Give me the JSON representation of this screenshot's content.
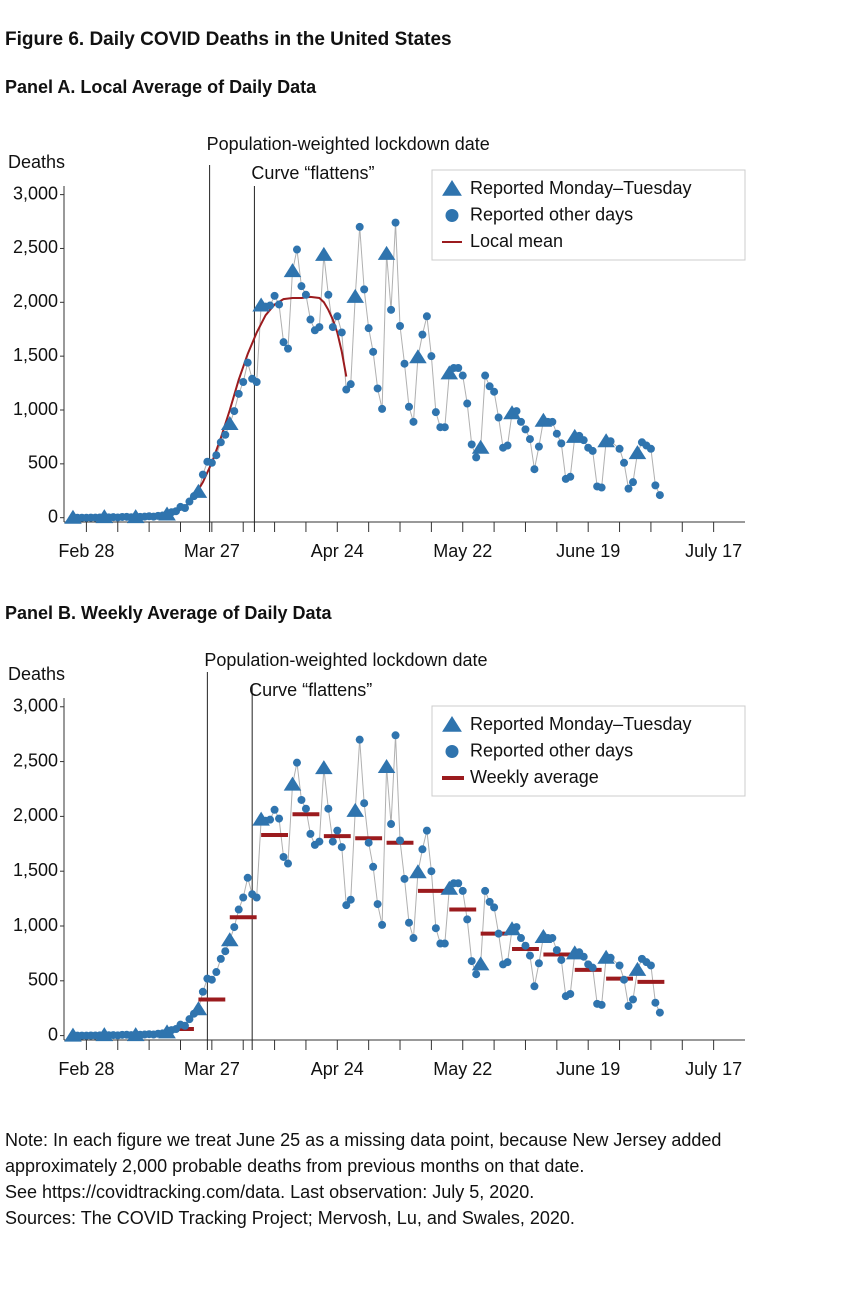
{
  "title": "Figure 6. Daily COVID Deaths in the United States",
  "notes": [
    "Note: In each figure we treat June 25 as a missing data point, because New Jersey added",
    "approximately 2,000 probable deaths from previous months on that date.",
    "See https://covidtracking.com/data. Last observation: July 5, 2020.",
    "Sources:  The COVID Tracking Project; Mervosh, Lu, and Swales, 2020."
  ],
  "chart_data": [
    {
      "type": "scatter",
      "title": "Panel A. Local Average of Daily Data",
      "y_label": "Deaths",
      "xlim": [
        -5,
        147
      ],
      "ylim": [
        -40,
        3080
      ],
      "xticks": [
        {
          "value": 0,
          "label": "Feb 28"
        },
        {
          "value": 28,
          "label": "Mar 27"
        },
        {
          "value": 56,
          "label": "Apr 24"
        },
        {
          "value": 84,
          "label": "May 22"
        },
        {
          "value": 112,
          "label": "June 19"
        },
        {
          "value": 140,
          "label": "July 17"
        }
      ],
      "xminorticks": [
        7,
        14,
        21,
        35,
        42,
        49,
        63,
        70,
        77,
        91,
        98,
        105,
        119,
        126,
        133
      ],
      "yticks": [
        0,
        500,
        {
          "value": 1000,
          "label": "1,000"
        },
        {
          "value": 1500,
          "label": "1,500"
        },
        {
          "value": 2000,
          "label": "2,000"
        },
        {
          "value": 2500,
          "label": "2,500"
        },
        {
          "value": 3000,
          "label": "3,000"
        }
      ],
      "grid": false,
      "connector_color": "#b0b0b0",
      "annotations": [
        {
          "text": "Population-weighted lockdown date",
          "x": 27.5
        },
        {
          "text": "Curve “flattens”",
          "x": 37.5
        }
      ],
      "series": [
        {
          "name": "Reported Monday–Tuesday",
          "marker": "triangle",
          "color": "#2f74ae",
          "x": [
            -3,
            4,
            11,
            18,
            25,
            32,
            39,
            46,
            53,
            60,
            67,
            74,
            81,
            88,
            95,
            102,
            109,
            116,
            123
          ],
          "values": [
            0,
            5,
            5,
            30,
            240,
            870,
            1970,
            2290,
            2440,
            2050,
            2450,
            1490,
            1340,
            650,
            970,
            900,
            750,
            710,
            600
          ]
        },
        {
          "name": "Reported other days",
          "marker": "circle",
          "color": "#2f74ae",
          "x": [
            -2,
            -1,
            0,
            1,
            2,
            3,
            5,
            6,
            7,
            8,
            9,
            10,
            12,
            13,
            14,
            15,
            16,
            17,
            19,
            20,
            21,
            22,
            23,
            24,
            26,
            27,
            28,
            29,
            30,
            31,
            33,
            34,
            35,
            36,
            37,
            38,
            40,
            41,
            42,
            43,
            44,
            45,
            47,
            48,
            49,
            50,
            51,
            52,
            54,
            55,
            56,
            57,
            58,
            59,
            61,
            62,
            63,
            64,
            65,
            66,
            68,
            69,
            70,
            71,
            72,
            73,
            75,
            76,
            77,
            78,
            79,
            80,
            82,
            83,
            84,
            85,
            86,
            87,
            89,
            90,
            91,
            92,
            93,
            94,
            96,
            97,
            98,
            99,
            100,
            101,
            103,
            104,
            105,
            106,
            107,
            108,
            110,
            111,
            112,
            113,
            114,
            115,
            117,
            119,
            120,
            121,
            122,
            124,
            125,
            126,
            127,
            128
          ],
          "values": [
            0,
            0,
            0,
            1,
            1,
            2,
            3,
            5,
            2,
            7,
            8,
            4,
            8,
            10,
            13,
            10,
            17,
            20,
            50,
            60,
            100,
            90,
            150,
            200,
            400,
            520,
            510,
            580,
            700,
            770,
            990,
            1150,
            1260,
            1440,
            1290,
            1260,
            1960,
            1970,
            2060,
            1980,
            1630,
            1570,
            2490,
            2150,
            2070,
            1840,
            1740,
            1770,
            2070,
            1770,
            1870,
            1720,
            1190,
            1240,
            2700,
            2120,
            1760,
            1540,
            1200,
            1010,
            1930,
            2740,
            1780,
            1430,
            1030,
            890,
            1700,
            1870,
            1500,
            980,
            840,
            840,
            1390,
            1390,
            1320,
            1060,
            680,
            560,
            1320,
            1220,
            1170,
            930,
            650,
            670,
            990,
            890,
            820,
            730,
            450,
            660,
            890,
            890,
            780,
            690,
            360,
            380,
            760,
            720,
            650,
            620,
            290,
            280,
            710,
            640,
            510,
            270,
            330,
            700,
            670,
            640,
            300,
            210
          ]
        },
        {
          "name": "Local mean",
          "marker": "line",
          "color": "#9b1b1e",
          "x": [
            -3,
            4,
            11,
            15,
            18,
            20,
            22,
            24,
            26,
            28,
            30,
            32,
            34,
            36,
            38,
            40,
            42,
            44,
            46,
            48,
            50,
            52,
            53,
            54,
            55,
            56,
            57,
            58
          ],
          "values": [
            0,
            5,
            7,
            15,
            30,
            50,
            100,
            190,
            330,
            510,
            740,
            1000,
            1280,
            1520,
            1720,
            1880,
            1980,
            2030,
            2040,
            2040,
            2050,
            2040,
            2000,
            1930,
            1840,
            1720,
            1540,
            1310
          ]
        }
      ]
    },
    {
      "type": "scatter",
      "title": "Panel B. Weekly Average of Daily Data",
      "y_label": "Deaths",
      "xlim": [
        -5,
        147
      ],
      "ylim": [
        -40,
        3080
      ],
      "xticks": [
        {
          "value": 0,
          "label": "Feb 28"
        },
        {
          "value": 28,
          "label": "Mar 27"
        },
        {
          "value": 56,
          "label": "Apr 24"
        },
        {
          "value": 84,
          "label": "May 22"
        },
        {
          "value": 112,
          "label": "June 19"
        },
        {
          "value": 140,
          "label": "July 17"
        }
      ],
      "xminorticks": [
        7,
        14,
        21,
        35,
        42,
        49,
        63,
        70,
        77,
        91,
        98,
        105,
        119,
        126,
        133
      ],
      "yticks": [
        0,
        500,
        {
          "value": 1000,
          "label": "1,000"
        },
        {
          "value": 1500,
          "label": "1,500"
        },
        {
          "value": 2000,
          "label": "2,000"
        },
        {
          "value": 2500,
          "label": "2,500"
        },
        {
          "value": 3000,
          "label": "3,000"
        }
      ],
      "grid": false,
      "connector_color": "#b0b0b0",
      "annotations": [
        {
          "text": "Population-weighted lockdown date",
          "x": 27
        },
        {
          "text": "Curve “flattens”",
          "x": 37
        }
      ],
      "series": [
        {
          "name": "Reported Monday–Tuesday",
          "marker": "triangle",
          "color": "#2f74ae",
          "x": [
            -3,
            4,
            11,
            18,
            25,
            32,
            39,
            46,
            53,
            60,
            67,
            74,
            81,
            88,
            95,
            102,
            109,
            116,
            123
          ],
          "values": [
            0,
            5,
            5,
            30,
            240,
            870,
            1970,
            2290,
            2440,
            2050,
            2450,
            1490,
            1340,
            650,
            970,
            900,
            750,
            710,
            600
          ]
        },
        {
          "name": "Reported other days",
          "marker": "circle",
          "color": "#2f74ae",
          "x": [
            -2,
            -1,
            0,
            1,
            2,
            3,
            5,
            6,
            7,
            8,
            9,
            10,
            12,
            13,
            14,
            15,
            16,
            17,
            19,
            20,
            21,
            22,
            23,
            24,
            26,
            27,
            28,
            29,
            30,
            31,
            33,
            34,
            35,
            36,
            37,
            38,
            40,
            41,
            42,
            43,
            44,
            45,
            47,
            48,
            49,
            50,
            51,
            52,
            54,
            55,
            56,
            57,
            58,
            59,
            61,
            62,
            63,
            64,
            65,
            66,
            68,
            69,
            70,
            71,
            72,
            73,
            75,
            76,
            77,
            78,
            79,
            80,
            82,
            83,
            84,
            85,
            86,
            87,
            89,
            90,
            91,
            92,
            93,
            94,
            96,
            97,
            98,
            99,
            100,
            101,
            103,
            104,
            105,
            106,
            107,
            108,
            110,
            111,
            112,
            113,
            114,
            115,
            117,
            119,
            120,
            121,
            122,
            124,
            125,
            126,
            127,
            128
          ],
          "values": [
            0,
            0,
            0,
            1,
            1,
            2,
            3,
            5,
            2,
            7,
            8,
            4,
            8,
            10,
            13,
            10,
            17,
            20,
            50,
            60,
            100,
            90,
            150,
            200,
            400,
            520,
            510,
            580,
            700,
            770,
            990,
            1150,
            1260,
            1440,
            1290,
            1260,
            1960,
            1970,
            2060,
            1980,
            1630,
            1570,
            2490,
            2150,
            2070,
            1840,
            1740,
            1770,
            2070,
            1770,
            1870,
            1720,
            1190,
            1240,
            2700,
            2120,
            1760,
            1540,
            1200,
            1010,
            1930,
            2740,
            1780,
            1430,
            1030,
            890,
            1700,
            1870,
            1500,
            980,
            840,
            840,
            1390,
            1390,
            1320,
            1060,
            680,
            560,
            1320,
            1220,
            1170,
            930,
            650,
            670,
            990,
            890,
            820,
            730,
            450,
            660,
            890,
            890,
            780,
            690,
            360,
            380,
            760,
            720,
            650,
            620,
            290,
            280,
            710,
            640,
            510,
            270,
            330,
            700,
            670,
            640,
            300,
            210
          ]
        },
        {
          "name": "Weekly average",
          "marker": "step",
          "color": "#9b1b1e",
          "x": [
            -3,
            4,
            11,
            18,
            25,
            32,
            39,
            46,
            53,
            60,
            67,
            74,
            81,
            88,
            95,
            102,
            109,
            116,
            123
          ],
          "values": [
            2,
            5,
            10,
            60,
            330,
            1080,
            1830,
            2020,
            1820,
            1800,
            1760,
            1320,
            1150,
            930,
            790,
            740,
            600,
            520,
            490
          ]
        }
      ]
    }
  ]
}
